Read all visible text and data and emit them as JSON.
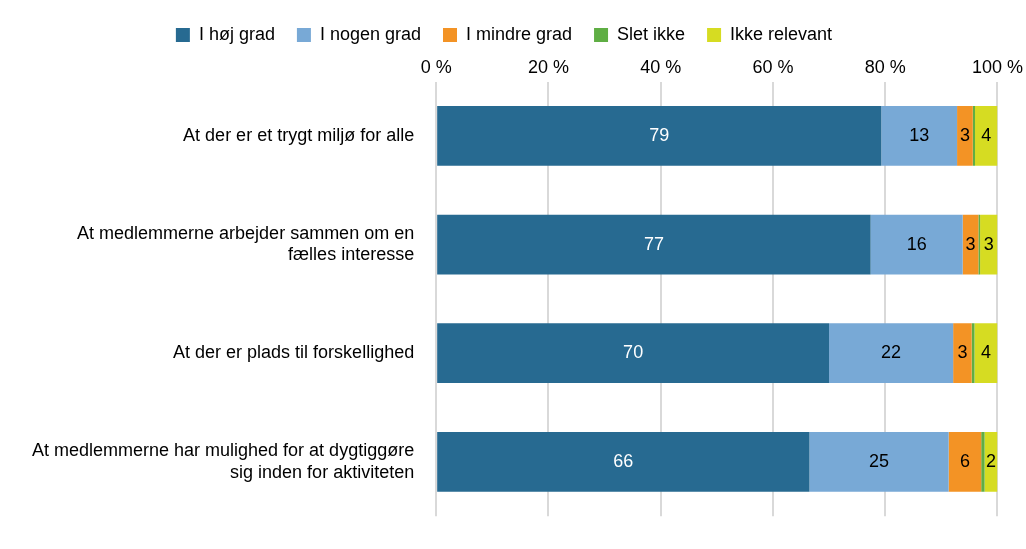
{
  "chart_data": {
    "type": "bar",
    "orientation": "horizontal",
    "stacked": true,
    "categories": [
      [
        "At der er et trygt miljø for alle"
      ],
      [
        "At medlemmerne arbejder sammen om en",
        "fælles interesse"
      ],
      [
        "At der er plads til forskellighed"
      ],
      [
        "At medlemmerne har mulighed for at dygtiggøre",
        "sig inden for aktiviteten"
      ]
    ],
    "series": [
      {
        "name": "I høj grad",
        "color": "#276a91",
        "values": [
          79.3,
          77.4,
          70.0,
          66.5
        ],
        "value_labels": [
          "79",
          "77",
          "70",
          "66"
        ]
      },
      {
        "name": "I nogen grad",
        "color": "#78a9d6",
        "values": [
          13.5,
          16.4,
          22.1,
          24.8
        ],
        "value_labels": [
          "13",
          "16",
          "22",
          "25"
        ]
      },
      {
        "name": "I mindre grad",
        "color": "#f39325",
        "values": [
          2.8,
          2.8,
          3.3,
          5.8
        ],
        "value_labels": [
          "3",
          "3",
          "3",
          "6"
        ]
      },
      {
        "name": "Slet ikke",
        "color": "#5fae44",
        "values": [
          0.4,
          0.3,
          0.5,
          0.6
        ],
        "value_labels": [
          null,
          null,
          null,
          null
        ]
      },
      {
        "name": "Ikke relevant",
        "color": "#d6dc22",
        "values": [
          4.0,
          3.1,
          4.1,
          2.3
        ],
        "value_labels": [
          "4",
          "3",
          "4",
          "2"
        ]
      }
    ],
    "xlim": [
      0,
      100
    ],
    "xticks": [
      {
        "value": 0,
        "label": "0 %"
      },
      {
        "value": 20,
        "label": "20 %"
      },
      {
        "value": 40,
        "label": "40 %"
      },
      {
        "value": 60,
        "label": "60 %"
      },
      {
        "value": 80,
        "label": "80 %"
      },
      {
        "value": 100,
        "label": "100 %"
      }
    ],
    "grid": "x",
    "legend": "top"
  }
}
